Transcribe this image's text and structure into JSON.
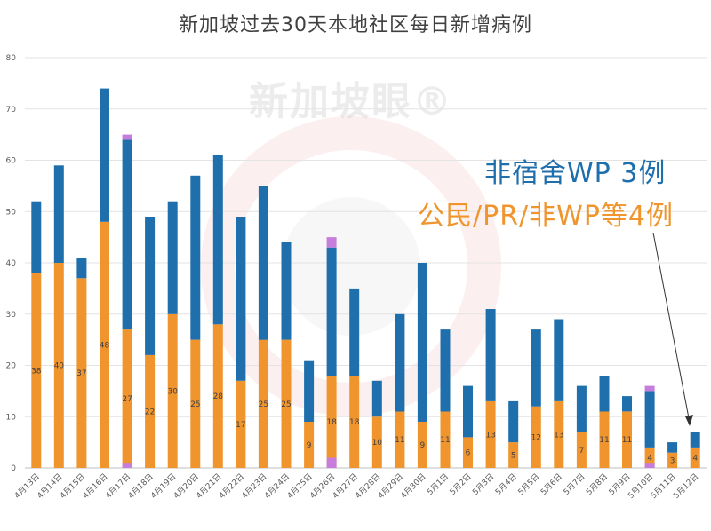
{
  "chart_data": {
    "type": "bar",
    "stacked": true,
    "title": "新加坡过去30天本地社区每日新增病例",
    "categories": [
      "4月13日",
      "4月14日",
      "4月15日",
      "4月16日",
      "4月17日",
      "4月18日",
      "4月19日",
      "4月20日",
      "4月21日",
      "4月22日",
      "4月23日",
      "4月24日",
      "4月25日",
      "4月26日",
      "4月27日",
      "4月28日",
      "4月29日",
      "4月30日",
      "5月1日",
      "5月2日",
      "5月3日",
      "5月4日",
      "5月5日",
      "5月6日",
      "5月7日",
      "5月8日",
      "5月9日",
      "5月10日",
      "5月11日",
      "5月12日"
    ],
    "series": [
      {
        "name": "orange",
        "color": "#f0952e",
        "values": [
          38,
          40,
          37,
          48,
          27,
          22,
          30,
          25,
          28,
          17,
          25,
          25,
          9,
          18,
          18,
          10,
          11,
          9,
          11,
          6,
          13,
          5,
          12,
          13,
          7,
          11,
          11,
          4,
          3,
          4
        ]
      },
      {
        "name": "blue",
        "color": "#1f6fad",
        "values": [
          14,
          19,
          4,
          26,
          37,
          27,
          22,
          32,
          33,
          32,
          30,
          19,
          12,
          25,
          17,
          7,
          19,
          31,
          16,
          10,
          18,
          8,
          15,
          16,
          9,
          7,
          3,
          11,
          2,
          3
        ]
      },
      {
        "name": "purple",
        "color": "#c77ddb",
        "values": [
          0,
          0,
          0,
          0,
          1,
          0,
          0,
          0,
          0,
          0,
          0,
          0,
          0,
          2,
          0,
          0,
          0,
          0,
          0,
          0,
          0,
          0,
          0,
          0,
          0,
          0,
          0,
          1,
          0,
          0
        ]
      }
    ],
    "orange_labels": [
      "38",
      "40",
      "37",
      "48",
      "27",
      "22",
      "30",
      "25",
      "28",
      "17",
      "25",
      "25",
      "9",
      "18",
      "18",
      "10",
      "11",
      "9",
      "11",
      "6",
      "13",
      "5",
      "12",
      "13",
      "7",
      "11",
      "11",
      "4",
      "3",
      "4"
    ],
    "yticks": [
      "0",
      "10",
      "20",
      "30",
      "40",
      "50",
      "60",
      "70",
      "80"
    ],
    "ylim": [
      0,
      80
    ],
    "grid": true
  },
  "annotations": {
    "blue_note": "非宿舍WP 3例",
    "orange_note": "公民/PR/非WP等4例"
  },
  "watermark": {
    "text": "新加坡眼®"
  }
}
